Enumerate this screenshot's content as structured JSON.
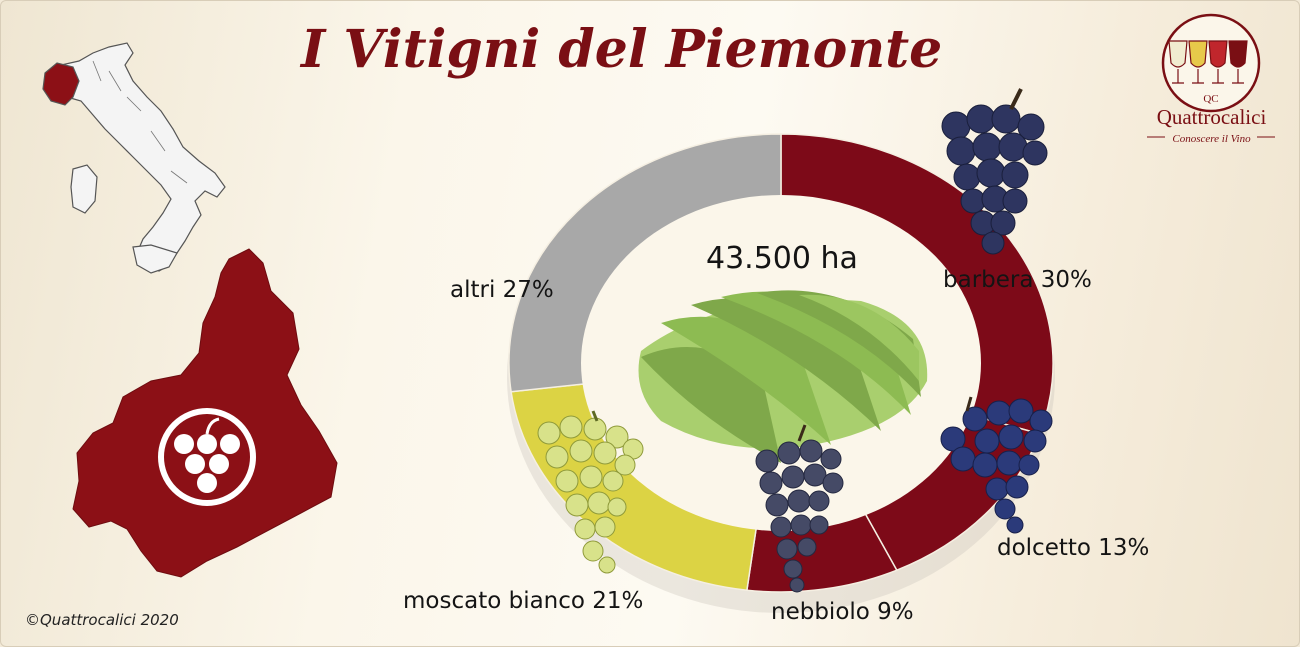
{
  "header": {
    "title": "I Vitigni del Piemonte"
  },
  "logo": {
    "monogram": "QC",
    "brand": "Quattrocalici",
    "tagline": "Conoscere il Vino"
  },
  "footer": {
    "copyright": "©Quattrocalici 2020"
  },
  "colors": {
    "brand_red": "#7a0f14",
    "ring_red": "#7d0a18",
    "ring_yellow": "#dcd344",
    "ring_grey": "#a8a8a8",
    "vineyard_green": "#7fa84a"
  },
  "icons": [
    "italy-map-icon",
    "piemonte-region-icon",
    "grape-badge-icon",
    "vineyard-icon",
    "grape-cluster-icon",
    "wine-glasses-logo-icon"
  ],
  "chart_data": {
    "type": "pie",
    "title": "I Vitigni del Piemonte",
    "total_label": "43.500 ha",
    "categories": [
      "barbera",
      "dolcetto",
      "nebbiolo",
      "moscato bianco",
      "altri"
    ],
    "values": [
      30,
      13,
      9,
      21,
      27
    ],
    "labels": [
      "barbera 30%",
      "dolcetto 13%",
      "nebbiolo 9%",
      "moscato bianco 21%",
      "altri 27%"
    ],
    "slice_colors": [
      "#7d0a18",
      "#7d0a18",
      "#7d0a18",
      "#dcd344",
      "#a8a8a8"
    ],
    "unit": "%"
  }
}
